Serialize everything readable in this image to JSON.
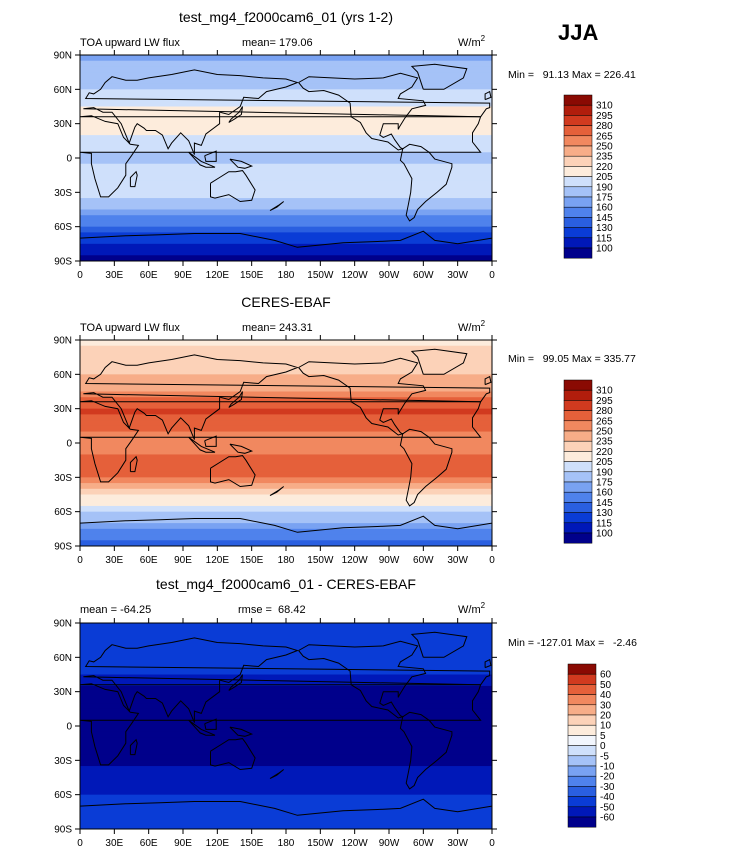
{
  "season": "JJA",
  "units": "W/m",
  "units_sup": "2",
  "colors": {
    "abs_scale": [
      "#00008b",
      "#0018b8",
      "#0a3cd6",
      "#2a5fe0",
      "#4f82ec",
      "#79a2f2",
      "#a5c2f7",
      "#cfe0fb",
      "#fdecdc",
      "#fcd2b8",
      "#f7ad88",
      "#f1885f",
      "#e5603a",
      "#d13a1f",
      "#b11d0c",
      "#8a0a03"
    ],
    "diff_scale": [
      "#00008b",
      "#0018b8",
      "#0a3cd6",
      "#2a5fe0",
      "#4f82ec",
      "#79a2f2",
      "#a5c2f7",
      "#cfe0fb",
      "#f2f6fd",
      "#fdecdc",
      "#fcd2b8",
      "#f7ad88",
      "#f1885f",
      "#e5603a",
      "#d13a1f",
      "#8a0a03"
    ],
    "coast": "#000000"
  },
  "chart_data": [
    {
      "type": "heatmap",
      "title": "test_mg4_f2000cam6_01 (yrs 1-2)",
      "left_label": "TOA upward LW flux",
      "mean_label": "mean=",
      "mean": "179.06",
      "stats": "Min =   91.13 Max = 226.41",
      "ylim": [
        -90,
        90
      ],
      "xlim": [
        0,
        360
      ],
      "lat_ticks": [
        "90N",
        "60N",
        "30N",
        "0",
        "30S",
        "60S",
        "90S"
      ],
      "lon_ticks": [
        "0",
        "30E",
        "60E",
        "90E",
        "120E",
        "150E",
        "180",
        "150W",
        "120W",
        "90W",
        "60W",
        "30W",
        "0"
      ],
      "colorbar_levels": [
        "310",
        "295",
        "280",
        "265",
        "250",
        "235",
        "220",
        "205",
        "190",
        "175",
        "160",
        "145",
        "130",
        "115",
        "100"
      ],
      "zonal_profile": {
        "lat": [
          90,
          60,
          45,
          30,
          15,
          0,
          -15,
          -30,
          -45,
          -60,
          -75,
          -90
        ],
        "value": [
          170,
          190,
          205,
          215,
          200,
          185,
          205,
          200,
          170,
          140,
          110,
          95
        ]
      }
    },
    {
      "type": "heatmap",
      "title": "CERES-EBAF",
      "left_label": "TOA upward LW flux",
      "mean_label": "mean=",
      "mean": "243.31",
      "stats": "Min =   99.05 Max = 335.77",
      "ylim": [
        -90,
        90
      ],
      "xlim": [
        0,
        360
      ],
      "lat_ticks": [
        "90N",
        "60N",
        "30N",
        "0",
        "30S",
        "60S",
        "90S"
      ],
      "lon_ticks": [
        "0",
        "30E",
        "60E",
        "90E",
        "120E",
        "150E",
        "180",
        "150W",
        "120W",
        "90W",
        "60W",
        "30W",
        "0"
      ],
      "colorbar_levels": [
        "310",
        "295",
        "280",
        "265",
        "250",
        "235",
        "220",
        "205",
        "190",
        "175",
        "160",
        "145",
        "130",
        "115",
        "100"
      ],
      "zonal_profile": {
        "lat": [
          90,
          60,
          45,
          30,
          15,
          0,
          -15,
          -30,
          -45,
          -60,
          -75,
          -90
        ],
        "value": [
          215,
          235,
          250,
          285,
          270,
          250,
          275,
          265,
          225,
          190,
          160,
          140
        ]
      }
    },
    {
      "type": "heatmap",
      "title": "test_mg4_f2000cam6_01 - CERES-EBAF",
      "left_label": "mean = ",
      "mean_label": "",
      "mean": "-64.25",
      "rmse_label": "rmse = ",
      "rmse": "68.42",
      "stats": "Min = -127.01 Max =   -2.46",
      "ylim": [
        -90,
        90
      ],
      "xlim": [
        0,
        360
      ],
      "lat_ticks": [
        "90N",
        "60N",
        "30N",
        "0",
        "30S",
        "60S",
        "90S"
      ],
      "lon_ticks": [
        "0",
        "30E",
        "60E",
        "90E",
        "120E",
        "150E",
        "180",
        "150W",
        "120W",
        "90W",
        "60W",
        "30W",
        "0"
      ],
      "colorbar_levels": [
        "60",
        "50",
        "40",
        "30",
        "20",
        "10",
        "5",
        "0",
        "-5",
        "-10",
        "-20",
        "-30",
        "-40",
        "-50",
        "-60"
      ],
      "zonal_profile": {
        "lat": [
          90,
          60,
          45,
          30,
          15,
          0,
          -15,
          -30,
          -45,
          -60,
          -75,
          -90
        ],
        "value": [
          -40,
          -45,
          -50,
          -70,
          -75,
          -65,
          -70,
          -65,
          -55,
          -50,
          -45,
          -40
        ]
      }
    }
  ]
}
